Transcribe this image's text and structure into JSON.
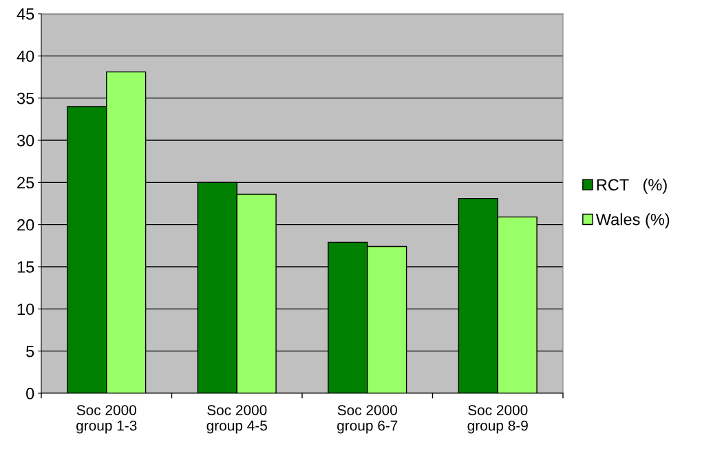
{
  "chart_data": {
    "type": "bar",
    "categories": [
      "Soc 2000\ngroup 1-3",
      "Soc 2000\ngroup 4-5",
      "Soc 2000\ngroup 6-7",
      "Soc 2000\ngroup 8-9"
    ],
    "series": [
      {
        "name": "RCT   (%)",
        "color": "#008000",
        "values": [
          34.0,
          25.0,
          17.9,
          23.1
        ]
      },
      {
        "name": "Wales (%)",
        "color": "#99ff66",
        "values": [
          38.1,
          23.6,
          17.4,
          20.9
        ]
      }
    ],
    "ylim": [
      0,
      45
    ],
    "yticks": [
      0,
      5,
      10,
      15,
      20,
      25,
      30,
      35,
      40,
      45
    ],
    "grid": "y",
    "legend": "right"
  }
}
